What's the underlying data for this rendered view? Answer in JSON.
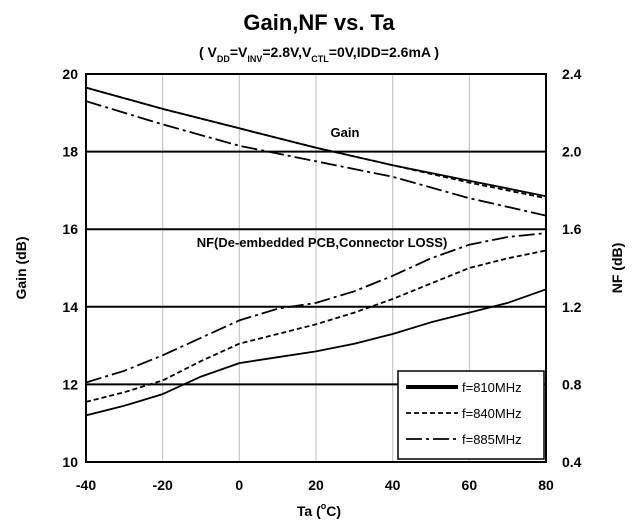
{
  "chart_data": {
    "type": "line",
    "title": "Gain,NF vs. Ta",
    "subtitle": {
      "open": "( V",
      "vdd_sub": "DD",
      "eq1": "=V",
      "inv_sub": "INV",
      "mid": "=2.8V,V",
      "ctl_sub": "CTL",
      "rest": "=0V,IDD=2.6mA )"
    },
    "xlabel": {
      "main": "Ta (",
      "sup": "o",
      "unit": "C)"
    },
    "ylabel_left": "Gain (dB)",
    "ylabel_right": "NF (dB)",
    "xlim": [
      -40,
      80
    ],
    "xticks": [
      "-40",
      "-20",
      "0",
      "20",
      "40",
      "60",
      "80"
    ],
    "ylim_left": [
      10,
      20
    ],
    "yticks_left": [
      "10",
      "12",
      "14",
      "16",
      "18",
      "20"
    ],
    "ylim_right": [
      0.4,
      2.4
    ],
    "yticks_right": [
      "0.4",
      "0.8",
      "1.2",
      "1.6",
      "2.0",
      "2.4"
    ],
    "grid": "major",
    "legend_position": "bottom-right",
    "annotations": {
      "gain": "Gain",
      "nf": "NF(De-embedded PCB,Connector LOSS)"
    },
    "series": [
      {
        "name": "f=810MHz",
        "group": "Gain",
        "axis": "left",
        "style": "solid",
        "x": [
          -40,
          -20,
          0,
          20,
          40,
          60,
          80
        ],
        "y": [
          19.65,
          19.1,
          18.6,
          18.1,
          17.65,
          17.25,
          16.85
        ]
      },
      {
        "name": "f=840MHz",
        "group": "Gain",
        "axis": "left",
        "style": "dash",
        "x": [
          -40,
          -20,
          0,
          20,
          40,
          60,
          80
        ],
        "y": [
          19.65,
          19.1,
          18.6,
          18.1,
          17.65,
          17.2,
          16.8
        ]
      },
      {
        "name": "f=885MHz",
        "group": "Gain",
        "axis": "left",
        "style": "dashdot",
        "x": [
          -40,
          -20,
          0,
          20,
          40,
          60,
          80
        ],
        "y": [
          19.3,
          18.7,
          18.15,
          17.75,
          17.35,
          16.8,
          16.35
        ]
      },
      {
        "name": "f=810MHz",
        "group": "NF",
        "axis": "right",
        "style": "solid",
        "x": [
          -40,
          -30,
          -20,
          -10,
          0,
          10,
          20,
          30,
          40,
          50,
          60,
          70,
          80
        ],
        "y": [
          0.64,
          0.69,
          0.75,
          0.84,
          0.91,
          0.94,
          0.97,
          1.01,
          1.06,
          1.12,
          1.17,
          1.22,
          1.29
        ]
      },
      {
        "name": "f=840MHz",
        "group": "NF",
        "axis": "right",
        "style": "dash",
        "x": [
          -40,
          -30,
          -20,
          -10,
          0,
          10,
          20,
          30,
          40,
          50,
          60,
          70,
          80
        ],
        "y": [
          0.71,
          0.76,
          0.82,
          0.92,
          1.01,
          1.06,
          1.11,
          1.17,
          1.24,
          1.32,
          1.4,
          1.45,
          1.49
        ]
      },
      {
        "name": "f=885MHz",
        "group": "NF",
        "axis": "right",
        "style": "dashdot",
        "x": [
          -40,
          -30,
          -20,
          -10,
          0,
          10,
          20,
          30,
          40,
          50,
          60,
          70,
          80
        ],
        "y": [
          0.81,
          0.87,
          0.95,
          1.04,
          1.13,
          1.19,
          1.22,
          1.28,
          1.36,
          1.45,
          1.52,
          1.56,
          1.58
        ]
      }
    ],
    "legend": [
      {
        "label": "f=810MHz",
        "style": "solid"
      },
      {
        "label": "f=840MHz",
        "style": "dash"
      },
      {
        "label": "f=885MHz",
        "style": "dashdot"
      }
    ]
  }
}
